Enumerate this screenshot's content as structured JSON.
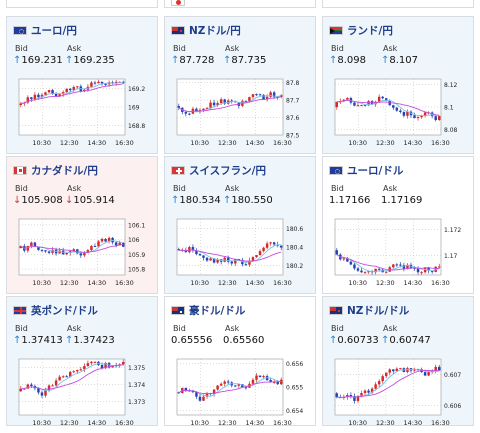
{
  "cards": [
    {
      "id": "top-left",
      "pair": "",
      "bid_label": "",
      "ask_label": "",
      "bid": "",
      "ask": "",
      "dir": "flat",
      "flag": "none",
      "stub": true
    },
    {
      "id": "top-mid",
      "pair": "",
      "bid_label": "",
      "ask_label": "",
      "bid": "",
      "ask": "",
      "dir": "flat",
      "flag": "jp",
      "stub": true
    },
    {
      "id": "top-right",
      "pair": "",
      "bid_label": "",
      "ask_label": "",
      "bid": "",
      "ask": "",
      "dir": "flat",
      "flag": "none",
      "stub": true
    },
    {
      "id": "eur-jpy",
      "pair": "ユーロ/円",
      "bid_label": "Bid",
      "ask_label": "Ask",
      "bid": "169.231",
      "ask": "169.235",
      "dir": "up",
      "flag": "eu",
      "chart_data": {
        "type": "candlestick",
        "x_ticks": [
          "10:30",
          "12:30",
          "14:30",
          "16:30"
        ],
        "y_ticks": [
          "169.2",
          "169",
          "168.8"
        ],
        "ylim": [
          168.7,
          169.3
        ]
      }
    },
    {
      "id": "nzd-jpy",
      "pair": "NZドル/円",
      "bid_label": "Bid",
      "ask_label": "Ask",
      "bid": "87.728",
      "ask": "87.735",
      "dir": "up",
      "flag": "nz",
      "chart_data": {
        "type": "candlestick",
        "x_ticks": [
          "10:30",
          "12:30",
          "14:30",
          "16:30"
        ],
        "y_ticks": [
          "87.8",
          "87.7",
          "87.6",
          "87.5"
        ],
        "ylim": [
          87.5,
          87.82
        ]
      }
    },
    {
      "id": "zar-jpy",
      "pair": "ランド/円",
      "bid_label": "Bid",
      "ask_label": "Ask",
      "bid": "8.098",
      "ask": "8.107",
      "dir": "up",
      "flag": "za",
      "chart_data": {
        "type": "candlestick",
        "x_ticks": [
          "10:30",
          "12:30",
          "14:30",
          "16:30"
        ],
        "y_ticks": [
          "8.12",
          "8.1",
          "8.08"
        ],
        "ylim": [
          8.075,
          8.125
        ]
      }
    },
    {
      "id": "cad-jpy",
      "pair": "カナダドル/円",
      "bid_label": "Bid",
      "ask_label": "Ask",
      "bid": "105.908",
      "ask": "105.914",
      "dir": "down",
      "flag": "ca",
      "chart_data": {
        "type": "candlestick",
        "x_ticks": [
          "10:30",
          "12:30",
          "14:30",
          "16:30"
        ],
        "y_ticks": [
          "106.1",
          "106",
          "105.9",
          "105.8"
        ],
        "ylim": [
          105.76,
          106.14
        ]
      }
    },
    {
      "id": "chf-jpy",
      "pair": "スイスフラン/円",
      "bid_label": "Bid",
      "ask_label": "Ask",
      "bid": "180.534",
      "ask": "180.550",
      "dir": "up",
      "flag": "ch",
      "chart_data": {
        "type": "candlestick",
        "x_ticks": [
          "10:30",
          "12:30",
          "14:30",
          "16:30"
        ],
        "y_ticks": [
          "180.6",
          "180.4",
          "180.2"
        ],
        "ylim": [
          180.1,
          180.7
        ]
      }
    },
    {
      "id": "eur-usd",
      "pair": "ユーロ/ドル",
      "bid_label": "Bid",
      "ask_label": "Ask",
      "bid": "1.17166",
      "ask": "1.17169",
      "dir": "flat",
      "flag": "eu",
      "chart_data": {
        "type": "candlestick",
        "x_ticks": [
          "10:30",
          "12:30",
          "14:30",
          "16:30"
        ],
        "y_ticks": [
          "1.172",
          "1.17"
        ],
        "ylim": [
          1.1685,
          1.1728
        ]
      }
    },
    {
      "id": "gbp-usd",
      "pair": "英ポンド/ドル",
      "bid_label": "Bid",
      "ask_label": "Ask",
      "bid": "1.37413",
      "ask": "1.37423",
      "dir": "up",
      "flag": "gb",
      "chart_data": {
        "type": "candlestick",
        "x_ticks": [
          "10:30",
          "12:30",
          "14:30",
          "16:30"
        ],
        "y_ticks": [
          "1.375",
          "1.374",
          "1.373"
        ],
        "ylim": [
          1.3722,
          1.3755
        ]
      }
    },
    {
      "id": "aud-usd",
      "pair": "豪ドル/ドル",
      "bid_label": "Bid",
      "ask_label": "Ask",
      "bid": "0.65556",
      "ask": "0.65560",
      "dir": "flat",
      "flag": "au",
      "chart_data": {
        "type": "candlestick",
        "x_ticks": [
          "10:30",
          "12:30",
          "14:30",
          "16:30"
        ],
        "y_ticks": [
          "0.656",
          "0.655",
          "0.654"
        ],
        "ylim": [
          0.6538,
          0.6562
        ]
      }
    },
    {
      "id": "nzd-usd",
      "pair": "NZドル/ドル",
      "bid_label": "Bid",
      "ask_label": "Ask",
      "bid": "0.60733",
      "ask": "0.60747",
      "dir": "up",
      "flag": "nz",
      "chart_data": {
        "type": "candlestick",
        "x_ticks": [
          "10:30",
          "12:30",
          "14:30",
          "16:30"
        ],
        "y_ticks": [
          "0.607",
          "0.606"
        ],
        "ylim": [
          0.6057,
          0.6075
        ]
      }
    }
  ],
  "colors": {
    "up_arrow": "#2a7fd4",
    "down_arrow": "#d23a3a",
    "candle_up": "#d42a2a",
    "candle_down": "#2245b5",
    "ma_short": "#c44ce0",
    "ma_long": "#7ec0e8",
    "pair_text": "#1f3d8a"
  }
}
